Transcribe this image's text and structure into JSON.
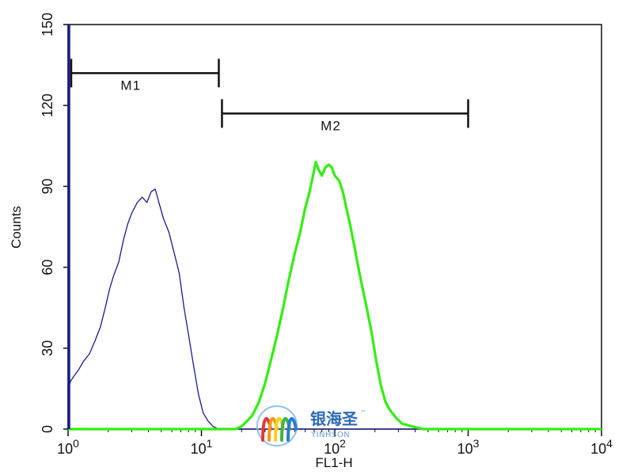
{
  "chart_data": {
    "type": "histogram",
    "xlabel": "FL1-H",
    "ylabel": "Counts",
    "xscale": "log",
    "xlim": [
      1,
      10000
    ],
    "ylim": [
      0,
      150
    ],
    "x_ticks": [
      {
        "value": 1,
        "base": "10",
        "exp": "0"
      },
      {
        "value": 10,
        "base": "10",
        "exp": "1"
      },
      {
        "value": 100,
        "base": "10",
        "exp": "2"
      },
      {
        "value": 1000,
        "base": "10",
        "exp": "3"
      },
      {
        "value": 10000,
        "base": "10",
        "exp": "4"
      }
    ],
    "y_ticks": [
      0,
      30,
      60,
      90,
      120,
      150
    ],
    "markers": [
      {
        "name": "M1",
        "from": 1.0,
        "to": 13.5,
        "y": 132
      },
      {
        "name": "M2",
        "from": 13.5,
        "to": 1000,
        "y": 117
      }
    ],
    "series": [
      {
        "color": "#1a1a8c",
        "stroke_width": "thin",
        "points": [
          [
            1.0,
            0
          ],
          [
            1.0,
            15
          ],
          [
            1.05,
            18
          ],
          [
            1.12,
            20
          ],
          [
            1.2,
            22
          ],
          [
            1.3,
            25
          ],
          [
            1.45,
            28
          ],
          [
            1.6,
            33
          ],
          [
            1.75,
            38
          ],
          [
            1.9,
            45
          ],
          [
            2.05,
            52
          ],
          [
            2.2,
            57
          ],
          [
            2.4,
            62
          ],
          [
            2.6,
            70
          ],
          [
            2.8,
            76
          ],
          [
            3.0,
            80
          ],
          [
            3.3,
            84
          ],
          [
            3.6,
            86
          ],
          [
            3.9,
            84
          ],
          [
            4.2,
            88
          ],
          [
            4.5,
            89
          ],
          [
            4.8,
            84
          ],
          [
            5.2,
            78
          ],
          [
            5.7,
            73
          ],
          [
            6.2,
            66
          ],
          [
            6.8,
            58
          ],
          [
            7.4,
            45
          ],
          [
            8.0,
            35
          ],
          [
            8.7,
            24
          ],
          [
            9.5,
            13
          ],
          [
            10.3,
            6
          ],
          [
            11.2,
            3
          ],
          [
            12.2,
            1
          ],
          [
            13.5,
            0
          ],
          [
            18,
            0
          ],
          [
            30,
            0
          ],
          [
            60,
            0
          ],
          [
            100,
            0
          ],
          [
            300,
            0
          ],
          [
            1000,
            0
          ],
          [
            10000,
            0
          ]
        ]
      },
      {
        "color": "#33ee11",
        "stroke_width": "thick",
        "points": [
          [
            1.0,
            0
          ],
          [
            18,
            0
          ],
          [
            20,
            1
          ],
          [
            22,
            3
          ],
          [
            24,
            5
          ],
          [
            27,
            10
          ],
          [
            30,
            17
          ],
          [
            33,
            25
          ],
          [
            37,
            35
          ],
          [
            41,
            45
          ],
          [
            45,
            55
          ],
          [
            50,
            65
          ],
          [
            55,
            73
          ],
          [
            60,
            82
          ],
          [
            64,
            87
          ],
          [
            68,
            93
          ],
          [
            72,
            99
          ],
          [
            76,
            96
          ],
          [
            80,
            94
          ],
          [
            85,
            97
          ],
          [
            90,
            98
          ],
          [
            95,
            97
          ],
          [
            100,
            94
          ],
          [
            108,
            92
          ],
          [
            115,
            88
          ],
          [
            122,
            82
          ],
          [
            130,
            76
          ],
          [
            140,
            68
          ],
          [
            150,
            60
          ],
          [
            162,
            52
          ],
          [
            175,
            44
          ],
          [
            190,
            35
          ],
          [
            205,
            25
          ],
          [
            222,
            16
          ],
          [
            240,
            10
          ],
          [
            260,
            7
          ],
          [
            290,
            4
          ],
          [
            320,
            2
          ],
          [
            380,
            1
          ],
          [
            460,
            0
          ],
          [
            1000,
            0
          ],
          [
            10000,
            0
          ]
        ]
      }
    ],
    "watermark": {
      "cn": "银海圣",
      "en": "YINHSON",
      "tm": "™"
    }
  }
}
